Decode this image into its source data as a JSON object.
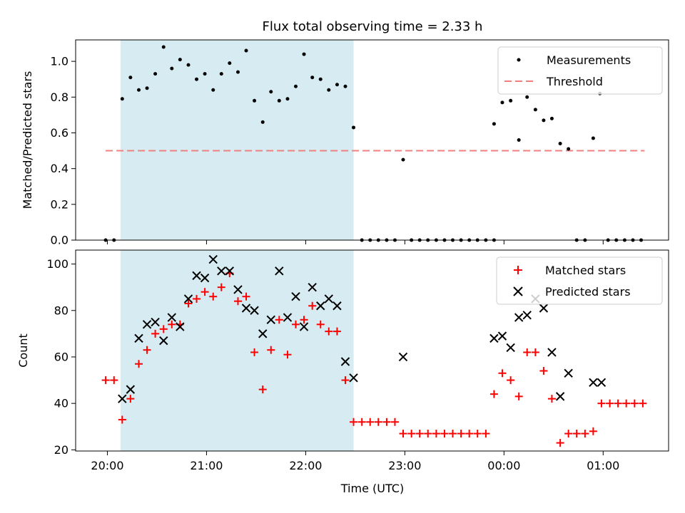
{
  "chart_data": {
    "title": "Flux total observing time = 2.33 h",
    "xlabel": "Time (UTC)",
    "x_unit": "hours",
    "xlim": [
      19.68,
      25.66
    ],
    "x_ticks": [
      20,
      21,
      22,
      23,
      24,
      25
    ],
    "x_tick_labels": [
      "20:00",
      "21:00",
      "22:00",
      "23:00",
      "00:00",
      "01:00"
    ],
    "shaded_span": [
      20.133,
      22.483
    ],
    "shade_color": "#add8e6",
    "panels": [
      {
        "type": "scatter",
        "ylabel": "Matched/Predicted stars",
        "ylim": [
          0,
          1.12
        ],
        "y_ticks": [
          0.0,
          0.2,
          0.4,
          0.6,
          0.8,
          1.0
        ],
        "y_tick_labels": [
          "0.0",
          "0.2",
          "0.4",
          "0.6",
          "0.8",
          "1.0"
        ],
        "legend_position": "upper right",
        "series": [
          {
            "name": "Measurements",
            "marker": "dot",
            "color": "#000000",
            "points": [
              [
                19.983,
                0.0
              ],
              [
                20.067,
                0.0
              ],
              [
                20.15,
                0.79
              ],
              [
                20.233,
                0.91
              ],
              [
                20.317,
                0.84
              ],
              [
                20.4,
                0.85
              ],
              [
                20.483,
                0.93
              ],
              [
                20.567,
                1.08
              ],
              [
                20.65,
                0.96
              ],
              [
                20.733,
                1.01
              ],
              [
                20.817,
                0.98
              ],
              [
                20.9,
                0.9
              ],
              [
                20.983,
                0.93
              ],
              [
                21.067,
                0.84
              ],
              [
                21.15,
                0.93
              ],
              [
                21.233,
                0.99
              ],
              [
                21.317,
                0.94
              ],
              [
                21.4,
                1.06
              ],
              [
                21.483,
                0.78
              ],
              [
                21.567,
                0.66
              ],
              [
                21.65,
                0.83
              ],
              [
                21.733,
                0.78
              ],
              [
                21.817,
                0.79
              ],
              [
                21.9,
                0.86
              ],
              [
                21.983,
                1.04
              ],
              [
                22.067,
                0.91
              ],
              [
                22.15,
                0.9
              ],
              [
                22.233,
                0.84
              ],
              [
                22.317,
                0.87
              ],
              [
                22.4,
                0.86
              ],
              [
                22.483,
                0.63
              ],
              [
                22.567,
                0.0
              ],
              [
                22.65,
                0.0
              ],
              [
                22.733,
                0.0
              ],
              [
                22.817,
                0.0
              ],
              [
                22.9,
                0.0
              ],
              [
                22.983,
                0.45
              ],
              [
                23.067,
                0.0
              ],
              [
                23.15,
                0.0
              ],
              [
                23.233,
                0.0
              ],
              [
                23.317,
                0.0
              ],
              [
                23.4,
                0.0
              ],
              [
                23.483,
                0.0
              ],
              [
                23.567,
                0.0
              ],
              [
                23.65,
                0.0
              ],
              [
                23.733,
                0.0
              ],
              [
                23.817,
                0.0
              ],
              [
                23.9,
                0.0
              ],
              [
                23.9,
                0.65
              ],
              [
                23.983,
                0.77
              ],
              [
                24.067,
                0.78
              ],
              [
                24.15,
                0.56
              ],
              [
                24.233,
                0.8
              ],
              [
                24.317,
                0.73
              ],
              [
                24.4,
                0.67
              ],
              [
                24.483,
                0.68
              ],
              [
                24.567,
                0.54
              ],
              [
                24.65,
                0.51
              ],
              [
                24.733,
                0.0
              ],
              [
                24.817,
                0.0
              ],
              [
                24.9,
                0.57
              ],
              [
                24.967,
                0.82
              ],
              [
                25.05,
                0.0
              ],
              [
                25.133,
                0.0
              ],
              [
                25.217,
                0.0
              ],
              [
                25.3,
                0.0
              ],
              [
                25.383,
                0.0
              ]
            ]
          },
          {
            "name": "Threshold",
            "line_style": "dashed",
            "color": "#f08080",
            "x": [
              19.983,
              25.417
            ],
            "y": [
              0.5,
              0.5
            ]
          }
        ]
      },
      {
        "type": "scatter",
        "ylabel": "Count",
        "ylim": [
          19.5,
          106
        ],
        "y_ticks": [
          20,
          40,
          60,
          80,
          100
        ],
        "y_tick_labels": [
          "20",
          "40",
          "60",
          "80",
          "100"
        ],
        "legend_position": "upper right",
        "series": [
          {
            "name": "Matched stars",
            "marker": "plus",
            "color": "#ff0000",
            "points": [
              [
                19.983,
                50
              ],
              [
                20.067,
                50
              ],
              [
                20.15,
                33
              ],
              [
                20.233,
                42
              ],
              [
                20.317,
                57
              ],
              [
                20.4,
                63
              ],
              [
                20.483,
                70
              ],
              [
                20.567,
                72
              ],
              [
                20.65,
                74
              ],
              [
                20.733,
                74
              ],
              [
                20.817,
                83
              ],
              [
                20.9,
                85
              ],
              [
                20.983,
                88
              ],
              [
                21.067,
                86
              ],
              [
                21.15,
                90
              ],
              [
                21.233,
                96
              ],
              [
                21.317,
                84
              ],
              [
                21.4,
                86
              ],
              [
                21.483,
                62
              ],
              [
                21.567,
                46
              ],
              [
                21.65,
                63
              ],
              [
                21.733,
                76
              ],
              [
                21.817,
                61
              ],
              [
                21.9,
                74
              ],
              [
                21.983,
                76
              ],
              [
                22.067,
                82
              ],
              [
                22.15,
                74
              ],
              [
                22.233,
                71
              ],
              [
                22.317,
                71
              ],
              [
                22.4,
                50
              ],
              [
                22.483,
                32
              ],
              [
                22.567,
                32
              ],
              [
                22.65,
                32
              ],
              [
                22.733,
                32
              ],
              [
                22.817,
                32
              ],
              [
                22.9,
                32
              ],
              [
                22.983,
                27
              ],
              [
                23.067,
                27
              ],
              [
                23.15,
                27
              ],
              [
                23.233,
                27
              ],
              [
                23.317,
                27
              ],
              [
                23.4,
                27
              ],
              [
                23.483,
                27
              ],
              [
                23.567,
                27
              ],
              [
                23.65,
                27
              ],
              [
                23.733,
                27
              ],
              [
                23.817,
                27
              ],
              [
                23.9,
                44
              ],
              [
                23.983,
                53
              ],
              [
                24.067,
                50
              ],
              [
                24.15,
                43
              ],
              [
                24.233,
                62
              ],
              [
                24.317,
                62
              ],
              [
                24.4,
                54
              ],
              [
                24.483,
                42
              ],
              [
                24.567,
                23
              ],
              [
                24.65,
                27
              ],
              [
                24.733,
                27
              ],
              [
                24.817,
                27
              ],
              [
                24.9,
                28
              ],
              [
                24.983,
                40
              ],
              [
                25.067,
                40
              ],
              [
                25.15,
                40
              ],
              [
                25.233,
                40
              ],
              [
                25.317,
                40
              ],
              [
                25.4,
                40
              ]
            ]
          },
          {
            "name": "Predicted stars",
            "marker": "x",
            "color": "#000000",
            "points": [
              [
                20.15,
                42
              ],
              [
                20.233,
                46
              ],
              [
                20.317,
                68
              ],
              [
                20.4,
                74
              ],
              [
                20.483,
                75
              ],
              [
                20.567,
                67
              ],
              [
                20.65,
                77
              ],
              [
                20.733,
                73
              ],
              [
                20.817,
                85
              ],
              [
                20.9,
                95
              ],
              [
                20.983,
                94
              ],
              [
                21.067,
                102
              ],
              [
                21.15,
                97
              ],
              [
                21.233,
                97
              ],
              [
                21.317,
                89
              ],
              [
                21.4,
                81
              ],
              [
                21.483,
                80
              ],
              [
                21.567,
                70
              ],
              [
                21.65,
                76
              ],
              [
                21.733,
                97
              ],
              [
                21.817,
                77
              ],
              [
                21.9,
                86
              ],
              [
                21.983,
                73
              ],
              [
                22.067,
                90
              ],
              [
                22.15,
                82
              ],
              [
                22.233,
                85
              ],
              [
                22.317,
                82
              ],
              [
                22.4,
                58
              ],
              [
                22.483,
                51
              ],
              [
                22.983,
                60
              ],
              [
                23.9,
                68
              ],
              [
                23.983,
                69
              ],
              [
                24.067,
                64
              ],
              [
                24.15,
                77
              ],
              [
                24.233,
                78
              ],
              [
                24.317,
                85
              ],
              [
                24.4,
                81
              ],
              [
                24.483,
                62
              ],
              [
                24.567,
                43
              ],
              [
                24.65,
                53
              ],
              [
                24.9,
                49
              ],
              [
                24.983,
                49
              ]
            ]
          }
        ]
      }
    ]
  }
}
